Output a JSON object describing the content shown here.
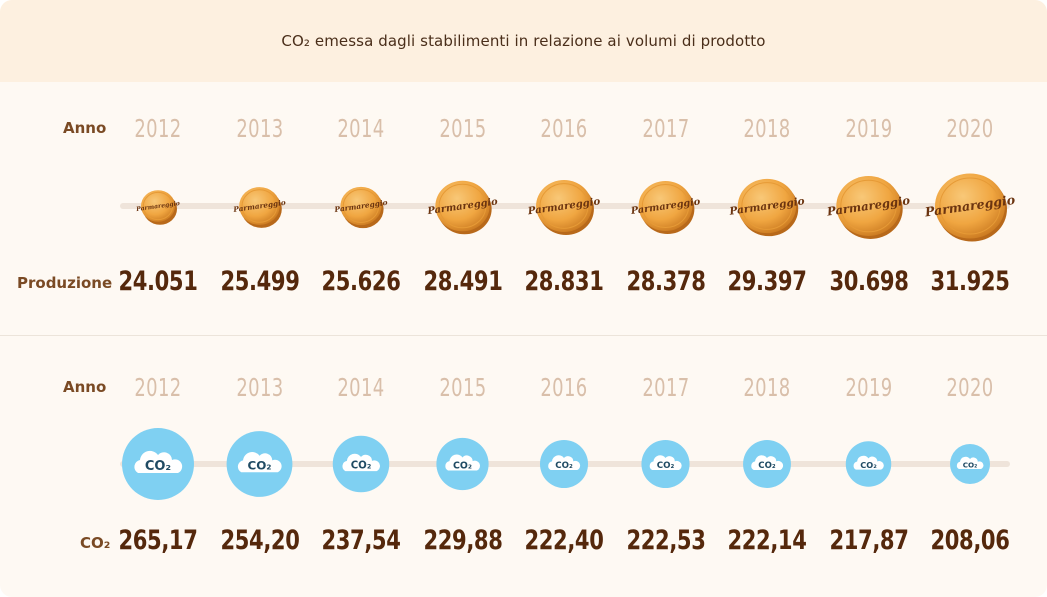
{
  "header": {
    "title": "CO₂ emessa dagli stabilimenti in relazione ai volumi di prodotto"
  },
  "production_section": {
    "year_label": "Anno",
    "value_label": "Produzione"
  },
  "co2_section": {
    "year_label": "Anno",
    "value_label": "CO₂"
  },
  "wheel_brand": "Parmareggio",
  "cloud_text": "CO₂",
  "colors": {
    "wheel": "#f0a641",
    "cloud_bg": "#7fd0f2",
    "value_text": "#55280c",
    "year_text": "#d9bfaa"
  },
  "icons": {
    "production_mark": "cheese-wheel-icon",
    "co2_mark": "co2-cloud-icon"
  },
  "chart_data": [
    {
      "type": "bubble",
      "categories": [
        "2012",
        "2013",
        "2014",
        "2015",
        "2016",
        "2017",
        "2018",
        "2019",
        "2020"
      ],
      "values": [
        24.051,
        25.499,
        25.626,
        28.491,
        28.831,
        28.378,
        29.397,
        30.698,
        31.925
      ],
      "value_labels": [
        "24.051",
        "25.499",
        "25.626",
        "28.491",
        "28.831",
        "28.378",
        "29.397",
        "30.698",
        "31.925"
      ],
      "title": "",
      "xlabel": "Anno",
      "ylabel": "Produzione",
      "grid": false
    },
    {
      "type": "bubble",
      "categories": [
        "2012",
        "2013",
        "2014",
        "2015",
        "2016",
        "2017",
        "2018",
        "2019",
        "2020"
      ],
      "values": [
        265.17,
        254.2,
        237.54,
        229.88,
        222.4,
        222.53,
        222.14,
        217.87,
        208.06
      ],
      "value_labels": [
        "265,17",
        "254,20",
        "237,54",
        "229,88",
        "222,40",
        "222,53",
        "222,14",
        "217,87",
        "208,06"
      ],
      "title": "",
      "xlabel": "Anno",
      "ylabel": "CO₂",
      "grid": false
    }
  ]
}
